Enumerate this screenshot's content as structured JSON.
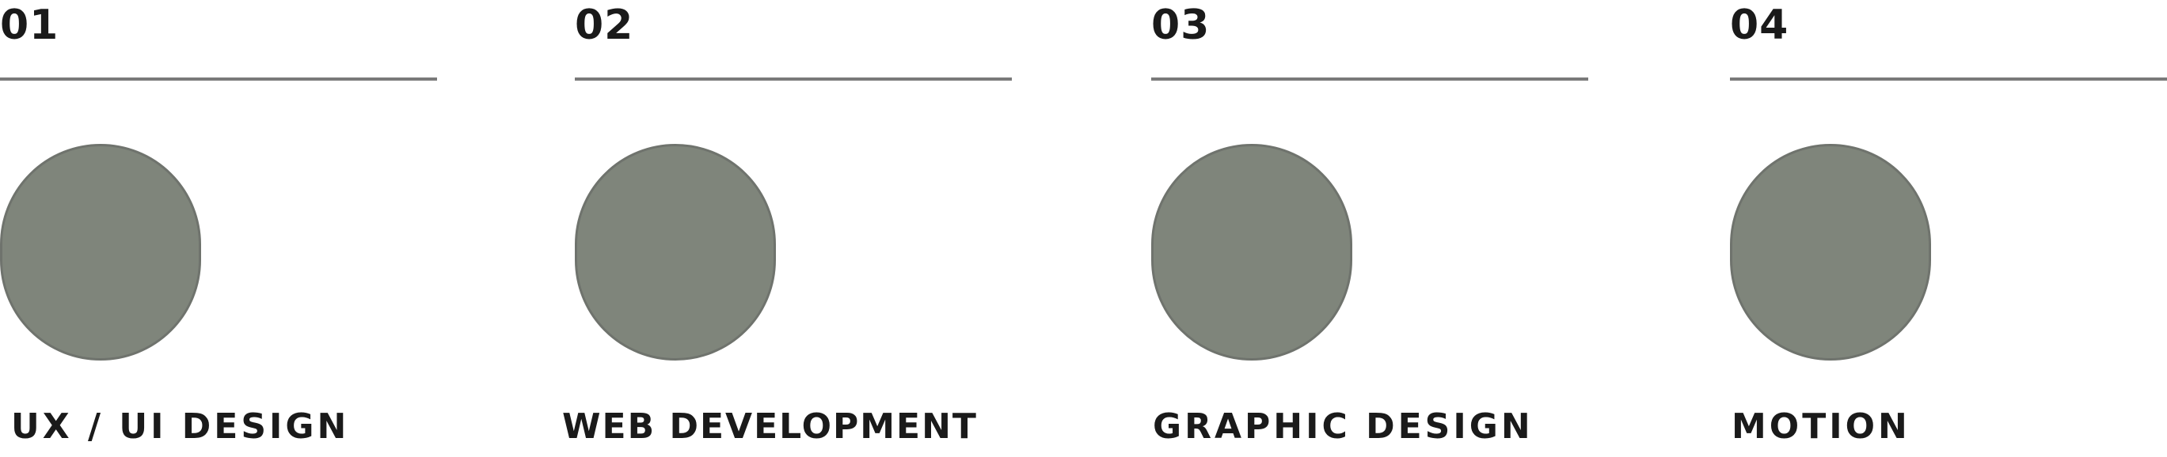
{
  "accent_color": "#7f857b",
  "cards": [
    {
      "number": "01",
      "title": "UX / UI DESIGN",
      "icon": "circle-placeholder-icon"
    },
    {
      "number": "02",
      "title": "WEB DEVELOPMENT",
      "icon": "circle-placeholder-icon"
    },
    {
      "number": "03",
      "title": "GRAPHIC DESIGN",
      "icon": "circle-placeholder-icon"
    },
    {
      "number": "04",
      "title": "MOTION",
      "icon": "circle-placeholder-icon"
    }
  ]
}
